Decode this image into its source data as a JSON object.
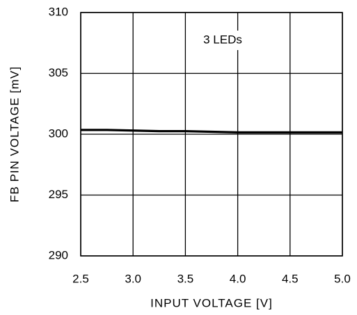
{
  "chart_data": {
    "type": "line",
    "xlabel": "INPUT VOLTAGE [V]",
    "ylabel": "FB PIN VOLTAGE [mV]",
    "annotation": "3 LEDs",
    "x": [
      2.5,
      2.75,
      3.0,
      3.25,
      3.5,
      3.75,
      4.0,
      4.25,
      4.5,
      4.75,
      5.0
    ],
    "series": [
      {
        "name": "3 LEDs",
        "color": "#000000",
        "values": [
          300.35,
          300.35,
          300.3,
          300.25,
          300.25,
          300.2,
          300.15,
          300.15,
          300.15,
          300.15,
          300.15
        ]
      }
    ],
    "xlim": [
      2.5,
      5.0
    ],
    "xticks": [
      2.5,
      {
        "value": 3,
        "label": "3.0"
      },
      3.5,
      {
        "value": 4,
        "label": "4.0"
      },
      4.5,
      {
        "value": 5,
        "label": "5.0"
      }
    ],
    "ylim": [
      290,
      310
    ],
    "yticks": [
      290,
      295,
      300,
      305,
      310
    ],
    "grid": true
  }
}
